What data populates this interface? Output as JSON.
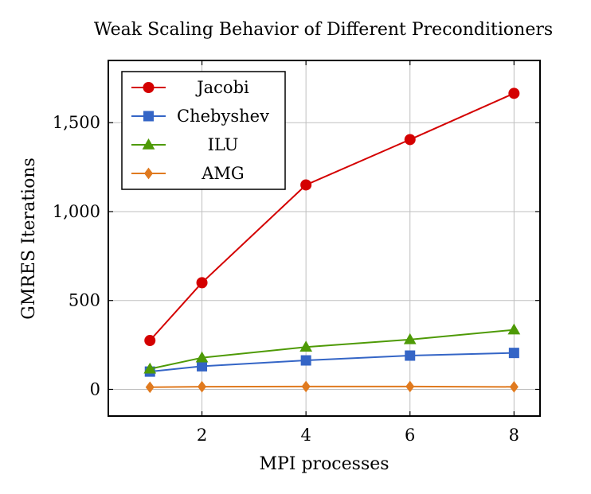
{
  "chart_data": {
    "type": "line",
    "title": "Weak Scaling Behavior of Different Preconditioners",
    "xlabel": "MPI processes",
    "ylabel": "GMRES Iterations",
    "xlim": [
      0.2,
      8.5
    ],
    "ylim": [
      -150,
      1850
    ],
    "xticks": [
      2,
      4,
      6,
      8
    ],
    "xtick_labels": [
      "2",
      "4",
      "6",
      "8"
    ],
    "yticks": [
      0,
      500,
      1000,
      1500
    ],
    "ytick_labels": [
      "0",
      "500",
      "1,000",
      "1,500"
    ],
    "grid": true,
    "legend_position": "top-left",
    "x": [
      1,
      2,
      4,
      6,
      8
    ],
    "series": [
      {
        "name": "Jacobi",
        "color": "#d40000",
        "marker": "circle",
        "values": [
          275,
          600,
          1150,
          1405,
          1665
        ]
      },
      {
        "name": "Chebyshev",
        "color": "#3465c6",
        "marker": "square",
        "values": [
          100,
          130,
          163,
          190,
          205
        ]
      },
      {
        "name": "ILU",
        "color": "#4e9a06",
        "marker": "triangle",
        "values": [
          115,
          178,
          238,
          280,
          335
        ]
      },
      {
        "name": "AMG",
        "color": "#e07a1f",
        "marker": "diamond",
        "values": [
          12,
          15,
          16,
          16,
          14
        ]
      }
    ]
  }
}
